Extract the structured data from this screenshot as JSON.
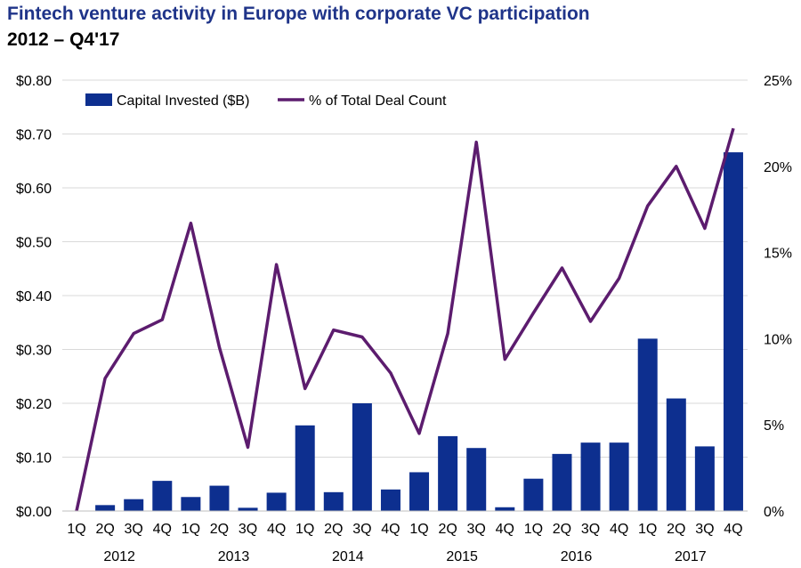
{
  "chart_data": {
    "type": "bar",
    "title": "Fintech venture activity in Europe with corporate VC participation",
    "subtitle": "2012 – Q4'17",
    "categories": [
      "1Q",
      "2Q",
      "3Q",
      "4Q",
      "1Q",
      "2Q",
      "3Q",
      "4Q",
      "1Q",
      "2Q",
      "3Q",
      "4Q",
      "1Q",
      "2Q",
      "3Q",
      "4Q",
      "1Q",
      "2Q",
      "3Q",
      "4Q",
      "1Q",
      "2Q",
      "3Q",
      "4Q"
    ],
    "years": [
      "2012",
      "2013",
      "2014",
      "2015",
      "2016",
      "2017"
    ],
    "series": [
      {
        "name": "Capital Invested ($B)",
        "type": "bar",
        "axis": "left",
        "color": "#0d2f8f",
        "values": [
          0.0,
          0.011,
          0.022,
          0.056,
          0.026,
          0.047,
          0.006,
          0.034,
          0.159,
          0.035,
          0.2,
          0.04,
          0.072,
          0.139,
          0.117,
          0.007,
          0.06,
          0.106,
          0.127,
          0.127,
          0.32,
          0.209,
          0.12,
          0.666
        ]
      },
      {
        "name": "% of Total Deal Count",
        "type": "line",
        "axis": "right",
        "color": "#5c1c6e",
        "values": [
          0.0,
          7.7,
          10.3,
          11.1,
          16.7,
          9.5,
          3.7,
          14.3,
          7.1,
          10.5,
          10.1,
          8.0,
          4.5,
          10.3,
          21.4,
          8.8,
          11.5,
          14.1,
          11.0,
          13.5,
          17.7,
          20.0,
          16.4,
          22.2
        ]
      }
    ],
    "ylim": [
      0,
      0.8
    ],
    "yticks": [
      "$0.00",
      "$0.10",
      "$0.20",
      "$0.30",
      "$0.40",
      "$0.50",
      "$0.60",
      "$0.70",
      "$0.80"
    ],
    "y2lim": [
      0,
      25
    ],
    "y2ticks": [
      "0%",
      "5%",
      "10%",
      "15%",
      "20%",
      "25%"
    ],
    "legend_position": "top-left",
    "grid": "horizontal"
  }
}
